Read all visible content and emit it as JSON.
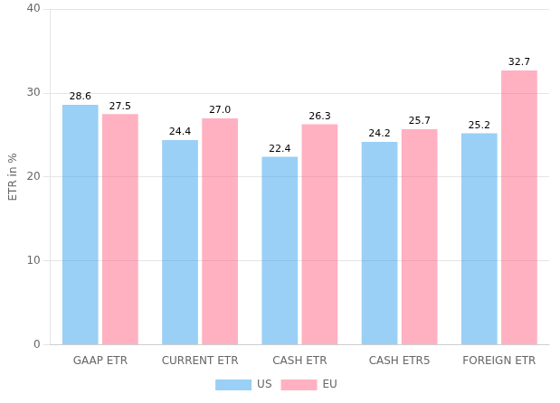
{
  "chart_data": {
    "type": "bar",
    "y_label": "ETR in %",
    "categories": [
      "GAAP ETR",
      "CURRENT ETR",
      "CASH ETR",
      "CASH ETR5",
      "FOREIGN ETR"
    ],
    "series": [
      {
        "name": "US",
        "values": [
          28.6,
          24.4,
          22.4,
          24.2,
          25.2
        ],
        "value_labels": [
          "28.6",
          "24.4",
          "22.4",
          "24.2",
          "25.2"
        ]
      },
      {
        "name": "EU",
        "values": [
          27.5,
          27.0,
          26.3,
          25.7,
          32.7
        ],
        "value_labels": [
          "27.5",
          "27.0",
          "26.3",
          "25.7",
          "32.7"
        ]
      }
    ],
    "ylim": [
      0,
      40
    ],
    "yticks": [
      0,
      10,
      20,
      30,
      40
    ],
    "grid": true,
    "legend": "bottom",
    "data_labels": true
  }
}
